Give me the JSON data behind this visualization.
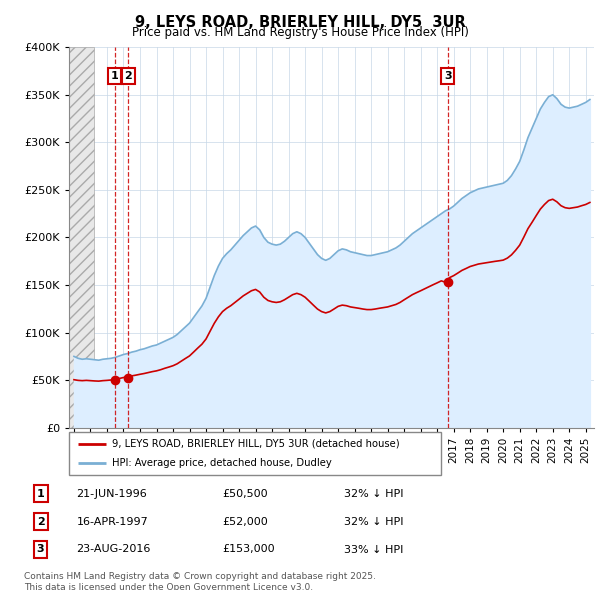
{
  "title": "9, LEYS ROAD, BRIERLEY HILL, DY5  3UR",
  "subtitle": "Price paid vs. HM Land Registry's House Price Index (HPI)",
  "ylim": [
    0,
    400000
  ],
  "xlim_left": 1993.7,
  "xlim_right": 2025.5,
  "hatch_end": 1995.2,
  "legend_line1": "9, LEYS ROAD, BRIERLEY HILL, DY5 3UR (detached house)",
  "legend_line2": "HPI: Average price, detached house, Dudley",
  "sales": [
    {
      "label": "1",
      "date": "21-JUN-1996",
      "price": 50500,
      "pct": "32%",
      "year": 1996.47
    },
    {
      "label": "2",
      "date": "16-APR-1997",
      "price": 52000,
      "pct": "32%",
      "year": 1997.29
    },
    {
      "label": "3",
      "date": "23-AUG-2016",
      "price": 153000,
      "pct": "33%",
      "year": 2016.64
    }
  ],
  "footnote": "Contains HM Land Registry data © Crown copyright and database right 2025.\nThis data is licensed under the Open Government Licence v3.0.",
  "red_color": "#cc0000",
  "blue_color": "#7aafd4",
  "hpi_fill_color": "#ddeeff",
  "grid_color": "#c8d8e8",
  "bg_color": "#ffffff",
  "hpi_dudley": [
    [
      1994.0,
      75000
    ],
    [
      1994.25,
      73000
    ],
    [
      1994.5,
      72000
    ],
    [
      1994.75,
      72500
    ],
    [
      1995.0,
      72000
    ],
    [
      1995.25,
      71500
    ],
    [
      1995.5,
      71000
    ],
    [
      1995.75,
      72000
    ],
    [
      1996.0,
      72500
    ],
    [
      1996.25,
      73000
    ],
    [
      1996.5,
      74000
    ],
    [
      1996.75,
      75500
    ],
    [
      1997.0,
      77000
    ],
    [
      1997.25,
      78000
    ],
    [
      1997.5,
      79500
    ],
    [
      1997.75,
      80500
    ],
    [
      1998.0,
      82000
    ],
    [
      1998.25,
      83000
    ],
    [
      1998.5,
      84500
    ],
    [
      1998.75,
      86000
    ],
    [
      1999.0,
      87000
    ],
    [
      1999.25,
      89000
    ],
    [
      1999.5,
      91000
    ],
    [
      1999.75,
      93000
    ],
    [
      2000.0,
      95000
    ],
    [
      2000.25,
      98000
    ],
    [
      2000.5,
      102000
    ],
    [
      2000.75,
      106000
    ],
    [
      2001.0,
      110000
    ],
    [
      2001.25,
      116000
    ],
    [
      2001.5,
      122000
    ],
    [
      2001.75,
      128000
    ],
    [
      2002.0,
      136000
    ],
    [
      2002.25,
      148000
    ],
    [
      2002.5,
      160000
    ],
    [
      2002.75,
      170000
    ],
    [
      2003.0,
      178000
    ],
    [
      2003.25,
      183000
    ],
    [
      2003.5,
      187000
    ],
    [
      2003.75,
      192000
    ],
    [
      2004.0,
      197000
    ],
    [
      2004.25,
      202000
    ],
    [
      2004.5,
      206000
    ],
    [
      2004.75,
      210000
    ],
    [
      2005.0,
      212000
    ],
    [
      2005.25,
      208000
    ],
    [
      2005.5,
      200000
    ],
    [
      2005.75,
      195000
    ],
    [
      2006.0,
      193000
    ],
    [
      2006.25,
      192000
    ],
    [
      2006.5,
      193000
    ],
    [
      2006.75,
      196000
    ],
    [
      2007.0,
      200000
    ],
    [
      2007.25,
      204000
    ],
    [
      2007.5,
      206000
    ],
    [
      2007.75,
      204000
    ],
    [
      2008.0,
      200000
    ],
    [
      2008.25,
      194000
    ],
    [
      2008.5,
      188000
    ],
    [
      2008.75,
      182000
    ],
    [
      2009.0,
      178000
    ],
    [
      2009.25,
      176000
    ],
    [
      2009.5,
      178000
    ],
    [
      2009.75,
      182000
    ],
    [
      2010.0,
      186000
    ],
    [
      2010.25,
      188000
    ],
    [
      2010.5,
      187000
    ],
    [
      2010.75,
      185000
    ],
    [
      2011.0,
      184000
    ],
    [
      2011.25,
      183000
    ],
    [
      2011.5,
      182000
    ],
    [
      2011.75,
      181000
    ],
    [
      2012.0,
      181000
    ],
    [
      2012.25,
      182000
    ],
    [
      2012.5,
      183000
    ],
    [
      2012.75,
      184000
    ],
    [
      2013.0,
      185000
    ],
    [
      2013.25,
      187000
    ],
    [
      2013.5,
      189000
    ],
    [
      2013.75,
      192000
    ],
    [
      2014.0,
      196000
    ],
    [
      2014.25,
      200000
    ],
    [
      2014.5,
      204000
    ],
    [
      2014.75,
      207000
    ],
    [
      2015.0,
      210000
    ],
    [
      2015.25,
      213000
    ],
    [
      2015.5,
      216000
    ],
    [
      2015.75,
      219000
    ],
    [
      2016.0,
      222000
    ],
    [
      2016.25,
      225000
    ],
    [
      2016.5,
      228000
    ],
    [
      2016.75,
      230000
    ],
    [
      2017.0,
      233000
    ],
    [
      2017.25,
      237000
    ],
    [
      2017.5,
      241000
    ],
    [
      2017.75,
      244000
    ],
    [
      2018.0,
      247000
    ],
    [
      2018.25,
      249000
    ],
    [
      2018.5,
      251000
    ],
    [
      2018.75,
      252000
    ],
    [
      2019.0,
      253000
    ],
    [
      2019.25,
      254000
    ],
    [
      2019.5,
      255000
    ],
    [
      2019.75,
      256000
    ],
    [
      2020.0,
      257000
    ],
    [
      2020.25,
      260000
    ],
    [
      2020.5,
      265000
    ],
    [
      2020.75,
      272000
    ],
    [
      2021.0,
      280000
    ],
    [
      2021.25,
      292000
    ],
    [
      2021.5,
      305000
    ],
    [
      2021.75,
      315000
    ],
    [
      2022.0,
      325000
    ],
    [
      2022.25,
      335000
    ],
    [
      2022.5,
      342000
    ],
    [
      2022.75,
      348000
    ],
    [
      2023.0,
      350000
    ],
    [
      2023.25,
      346000
    ],
    [
      2023.5,
      340000
    ],
    [
      2023.75,
      337000
    ],
    [
      2024.0,
      336000
    ],
    [
      2024.25,
      337000
    ],
    [
      2024.5,
      338000
    ],
    [
      2024.75,
      340000
    ],
    [
      2025.0,
      342000
    ],
    [
      2025.25,
      345000
    ]
  ],
  "property_hpi": [
    [
      1994.0,
      50500
    ],
    [
      1994.25,
      49800
    ],
    [
      1994.5,
      49500
    ],
    [
      1994.75,
      49800
    ],
    [
      1995.0,
      49500
    ],
    [
      1995.25,
      49200
    ],
    [
      1995.5,
      49000
    ],
    [
      1995.75,
      49500
    ],
    [
      1996.0,
      49800
    ],
    [
      1996.25,
      50200
    ],
    [
      1996.5,
      50500
    ],
    [
      1996.75,
      51800
    ],
    [
      1997.0,
      52800
    ],
    [
      1997.25,
      53500
    ],
    [
      1997.5,
      54500
    ],
    [
      1997.75,
      55300
    ],
    [
      1998.0,
      56200
    ],
    [
      1998.25,
      57000
    ],
    [
      1998.5,
      58000
    ],
    [
      1998.75,
      59000
    ],
    [
      1999.0,
      59800
    ],
    [
      1999.25,
      61000
    ],
    [
      1999.5,
      62500
    ],
    [
      1999.75,
      63800
    ],
    [
      2000.0,
      65200
    ],
    [
      2000.25,
      67200
    ],
    [
      2000.5,
      70000
    ],
    [
      2000.75,
      72800
    ],
    [
      2001.0,
      75500
    ],
    [
      2001.25,
      79600
    ],
    [
      2001.5,
      83800
    ],
    [
      2001.75,
      87800
    ],
    [
      2002.0,
      93300
    ],
    [
      2002.25,
      101600
    ],
    [
      2002.5,
      109800
    ],
    [
      2002.75,
      116600
    ],
    [
      2003.0,
      122100
    ],
    [
      2003.25,
      125600
    ],
    [
      2003.5,
      128300
    ],
    [
      2003.75,
      131700
    ],
    [
      2004.0,
      135100
    ],
    [
      2004.25,
      138600
    ],
    [
      2004.5,
      141300
    ],
    [
      2004.75,
      144000
    ],
    [
      2005.0,
      145400
    ],
    [
      2005.25,
      142700
    ],
    [
      2005.5,
      137200
    ],
    [
      2005.75,
      133800
    ],
    [
      2006.0,
      132400
    ],
    [
      2006.25,
      131700
    ],
    [
      2006.5,
      132400
    ],
    [
      2006.75,
      134500
    ],
    [
      2007.0,
      137200
    ],
    [
      2007.25,
      139900
    ],
    [
      2007.5,
      141300
    ],
    [
      2007.75,
      139900
    ],
    [
      2008.0,
      137200
    ],
    [
      2008.25,
      133100
    ],
    [
      2008.5,
      128900
    ],
    [
      2008.75,
      124800
    ],
    [
      2009.0,
      122100
    ],
    [
      2009.25,
      120700
    ],
    [
      2009.5,
      122100
    ],
    [
      2009.75,
      124800
    ],
    [
      2010.0,
      127600
    ],
    [
      2010.25,
      128900
    ],
    [
      2010.5,
      128300
    ],
    [
      2010.75,
      127000
    ],
    [
      2011.0,
      126300
    ],
    [
      2011.25,
      125600
    ],
    [
      2011.5,
      124800
    ],
    [
      2011.75,
      124200
    ],
    [
      2012.0,
      124200
    ],
    [
      2012.25,
      124800
    ],
    [
      2012.5,
      125600
    ],
    [
      2012.75,
      126300
    ],
    [
      2013.0,
      127000
    ],
    [
      2013.25,
      128300
    ],
    [
      2013.5,
      129600
    ],
    [
      2013.75,
      131700
    ],
    [
      2014.0,
      134500
    ],
    [
      2014.25,
      137200
    ],
    [
      2014.5,
      139900
    ],
    [
      2014.75,
      142000
    ],
    [
      2015.0,
      144000
    ],
    [
      2015.25,
      146100
    ],
    [
      2015.5,
      148200
    ],
    [
      2015.75,
      150300
    ],
    [
      2016.0,
      152300
    ],
    [
      2016.25,
      154400
    ],
    [
      2016.5,
      153000
    ],
    [
      2016.75,
      157800
    ],
    [
      2017.0,
      159900
    ],
    [
      2017.25,
      162600
    ],
    [
      2017.5,
      165400
    ],
    [
      2017.75,
      167400
    ],
    [
      2018.0,
      169500
    ],
    [
      2018.25,
      170800
    ],
    [
      2018.5,
      172100
    ],
    [
      2018.75,
      172800
    ],
    [
      2019.0,
      173500
    ],
    [
      2019.25,
      174200
    ],
    [
      2019.5,
      174900
    ],
    [
      2019.75,
      175500
    ],
    [
      2020.0,
      176200
    ],
    [
      2020.25,
      178300
    ],
    [
      2020.5,
      181700
    ],
    [
      2020.75,
      186500
    ],
    [
      2021.0,
      192000
    ],
    [
      2021.25,
      200400
    ],
    [
      2021.5,
      209300
    ],
    [
      2021.75,
      216000
    ],
    [
      2022.0,
      223000
    ],
    [
      2022.25,
      229800
    ],
    [
      2022.5,
      234700
    ],
    [
      2022.75,
      238800
    ],
    [
      2023.0,
      240200
    ],
    [
      2023.25,
      237500
    ],
    [
      2023.5,
      233400
    ],
    [
      2023.75,
      231300
    ],
    [
      2024.0,
      230600
    ],
    [
      2024.25,
      231300
    ],
    [
      2024.5,
      232000
    ],
    [
      2024.75,
      233400
    ],
    [
      2025.0,
      234700
    ],
    [
      2025.25,
      236800
    ]
  ]
}
